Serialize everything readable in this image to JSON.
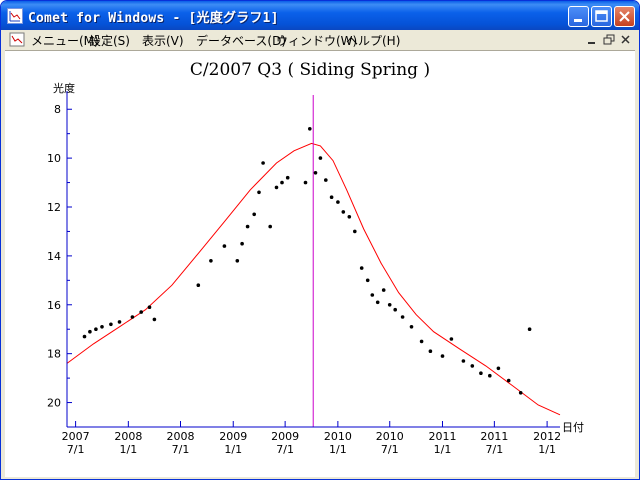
{
  "window": {
    "title": "Comet for Windows - [光度グラフ1]",
    "buttons": {
      "minimize": "minimize",
      "maximize": "maximize",
      "close": "close"
    }
  },
  "menubar": {
    "items": [
      {
        "label": "メニュー(M)"
      },
      {
        "label": "設定(S)"
      },
      {
        "label": "表示(V)"
      },
      {
        "label": "データベース(D)"
      },
      {
        "label": "ウィンドウ(W)"
      },
      {
        "label": "ヘルプ(H)"
      }
    ]
  },
  "colors": {
    "curve": "#ff0000",
    "perihelion_line": "#cc00cc",
    "axis": "#0000cc",
    "points": "#000000"
  },
  "chart_data": {
    "type": "scatter",
    "title": "C/2007 Q3 ( Siding Spring )",
    "ylabel": "光度",
    "xlabel": "日付",
    "y_inverted": true,
    "ylim": [
      21,
      7.5
    ],
    "yticks": [
      8,
      10,
      12,
      14,
      16,
      18,
      20
    ],
    "xlim": [
      "2007-06-01",
      "2012-02-15"
    ],
    "xticks": [
      {
        "date": "2007-07-01",
        "top": "2007",
        "bottom": "7/1"
      },
      {
        "date": "2008-01-01",
        "top": "2008",
        "bottom": "1/1"
      },
      {
        "date": "2008-07-01",
        "top": "2008",
        "bottom": "7/1"
      },
      {
        "date": "2009-01-01",
        "top": "2009",
        "bottom": "1/1"
      },
      {
        "date": "2009-07-01",
        "top": "2009",
        "bottom": "7/1"
      },
      {
        "date": "2010-01-01",
        "top": "2010",
        "bottom": "1/1"
      },
      {
        "date": "2010-07-01",
        "top": "2010",
        "bottom": "7/1"
      },
      {
        "date": "2011-01-01",
        "top": "2011",
        "bottom": "1/1"
      },
      {
        "date": "2011-07-01",
        "top": "2011",
        "bottom": "7/1"
      },
      {
        "date": "2012-01-01",
        "top": "2012",
        "bottom": "1/1"
      }
    ],
    "perihelion_date": "2009-10-07",
    "model_curve": [
      [
        "2007-06-01",
        18.4
      ],
      [
        "2007-09-01",
        17.6
      ],
      [
        "2007-12-01",
        16.9
      ],
      [
        "2008-03-01",
        16.2
      ],
      [
        "2008-06-01",
        15.2
      ],
      [
        "2008-09-01",
        13.9
      ],
      [
        "2008-12-01",
        12.6
      ],
      [
        "2009-03-01",
        11.3
      ],
      [
        "2009-06-01",
        10.2
      ],
      [
        "2009-08-01",
        9.7
      ],
      [
        "2009-10-01",
        9.4
      ],
      [
        "2009-11-01",
        9.5
      ],
      [
        "2009-12-15",
        10.1
      ],
      [
        "2010-02-01",
        11.3
      ],
      [
        "2010-04-01",
        12.9
      ],
      [
        "2010-06-01",
        14.3
      ],
      [
        "2010-08-01",
        15.5
      ],
      [
        "2010-10-01",
        16.4
      ],
      [
        "2010-12-01",
        17.1
      ],
      [
        "2011-03-01",
        17.8
      ],
      [
        "2011-06-01",
        18.5
      ],
      [
        "2011-09-01",
        19.3
      ],
      [
        "2011-12-01",
        20.1
      ],
      [
        "2012-02-15",
        20.5
      ]
    ],
    "observations": [
      [
        "2007-08-01",
        17.3
      ],
      [
        "2007-08-20",
        17.1
      ],
      [
        "2007-09-10",
        17.0
      ],
      [
        "2007-10-01",
        16.9
      ],
      [
        "2007-11-01",
        16.8
      ],
      [
        "2007-12-01",
        16.7
      ],
      [
        "2008-01-15",
        16.5
      ],
      [
        "2008-02-15",
        16.3
      ],
      [
        "2008-03-15",
        16.1
      ],
      [
        "2008-04-01",
        16.6
      ],
      [
        "2008-09-01",
        15.2
      ],
      [
        "2008-10-15",
        14.2
      ],
      [
        "2008-12-01",
        13.6
      ],
      [
        "2009-01-15",
        14.2
      ],
      [
        "2009-02-01",
        13.5
      ],
      [
        "2009-02-20",
        12.8
      ],
      [
        "2009-03-15",
        12.3
      ],
      [
        "2009-04-01",
        11.4
      ],
      [
        "2009-04-15",
        10.2
      ],
      [
        "2009-05-10",
        12.8
      ],
      [
        "2009-06-01",
        11.2
      ],
      [
        "2009-06-20",
        11.0
      ],
      [
        "2009-07-10",
        10.8
      ],
      [
        "2009-09-10",
        11.0
      ],
      [
        "2009-09-25",
        8.8
      ],
      [
        "2009-10-15",
        10.6
      ],
      [
        "2009-11-01",
        10.0
      ],
      [
        "2009-11-20",
        10.9
      ],
      [
        "2009-12-10",
        11.6
      ],
      [
        "2010-01-01",
        11.8
      ],
      [
        "2010-01-20",
        12.2
      ],
      [
        "2010-02-10",
        12.4
      ],
      [
        "2010-03-01",
        13.0
      ],
      [
        "2010-03-25",
        14.5
      ],
      [
        "2010-04-15",
        15.0
      ],
      [
        "2010-05-01",
        15.6
      ],
      [
        "2010-05-20",
        15.9
      ],
      [
        "2010-06-10",
        15.4
      ],
      [
        "2010-07-01",
        16.0
      ],
      [
        "2010-07-20",
        16.2
      ],
      [
        "2010-08-15",
        16.5
      ],
      [
        "2010-09-15",
        16.9
      ],
      [
        "2010-10-20",
        17.5
      ],
      [
        "2010-11-20",
        17.9
      ],
      [
        "2011-01-01",
        18.1
      ],
      [
        "2011-02-01",
        17.4
      ],
      [
        "2011-03-15",
        18.3
      ],
      [
        "2011-04-15",
        18.5
      ],
      [
        "2011-05-15",
        18.8
      ],
      [
        "2011-06-15",
        18.9
      ],
      [
        "2011-07-15",
        18.6
      ],
      [
        "2011-08-20",
        19.1
      ],
      [
        "2011-10-01",
        19.6
      ],
      [
        "2011-11-01",
        17.0
      ]
    ]
  }
}
